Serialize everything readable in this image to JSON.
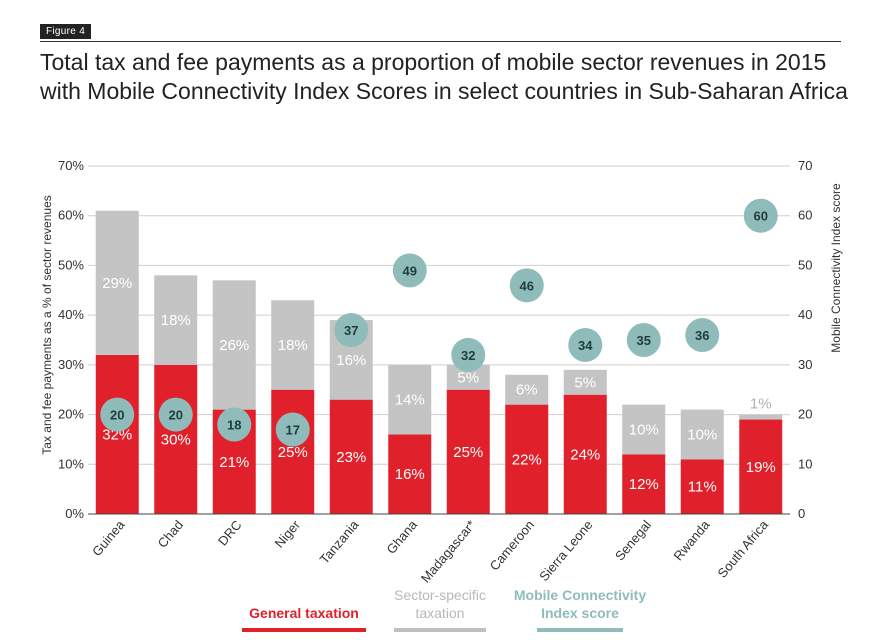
{
  "figure_label": "Figure 4",
  "title": "Total tax and fee payments as a proportion of mobile sector revenues in 2015 with Mobile Connectivity Index Scores in select countries in Sub-Saharan Africa",
  "colors": {
    "general": "#e0202a",
    "sector": "#c4c4c4",
    "mci": "#8fbcba",
    "text": "#333333"
  },
  "chart_data": {
    "type": "bar",
    "stacked": true,
    "categories": [
      "Guinea",
      "Chad",
      "DRC",
      "Niger",
      "Tanzania",
      "Ghana",
      "Madagascar*",
      "Cameroon",
      "Sierra Leone",
      "Senegal",
      "Rwanda",
      "South Africa"
    ],
    "series": [
      {
        "name": "General taxation",
        "values": [
          32,
          30,
          21,
          25,
          23,
          16,
          25,
          22,
          24,
          12,
          11,
          19
        ],
        "labels": [
          "32%",
          "30%",
          "21%",
          "25%",
          "23%",
          "16%",
          "25%",
          "22%",
          "24%",
          "12%",
          "11%",
          "19%"
        ]
      },
      {
        "name": "Sector-specific taxation",
        "values": [
          29,
          18,
          26,
          18,
          16,
          14,
          5,
          6,
          5,
          10,
          10,
          1
        ],
        "labels": [
          "29%",
          "18%",
          "26%",
          "18%",
          "16%",
          "14%",
          "5%",
          "6%",
          "5%",
          "10%",
          "10%",
          "1%"
        ]
      },
      {
        "name": "Mobile Connectivity Index score",
        "axis": "right",
        "type": "scatter",
        "values": [
          20,
          20,
          18,
          17,
          37,
          49,
          32,
          46,
          34,
          35,
          36,
          60
        ]
      }
    ],
    "ylabel": "Tax and fee payments as a % of sector revenues",
    "y2label": "Mobile Connectivity Index score",
    "ylim": [
      0,
      70
    ],
    "y2lim": [
      0,
      70
    ],
    "yticks": [
      "0%",
      "10%",
      "20%",
      "30%",
      "40%",
      "50%",
      "60%",
      "70%"
    ],
    "y2ticks": [
      "0",
      "10",
      "20",
      "30",
      "40",
      "50",
      "60",
      "70"
    ],
    "grid": true,
    "legend_position": "bottom"
  },
  "legend": {
    "general": "General taxation",
    "sector": "Sector-specific taxation",
    "mci": "Mobile Connectivity Index score"
  }
}
